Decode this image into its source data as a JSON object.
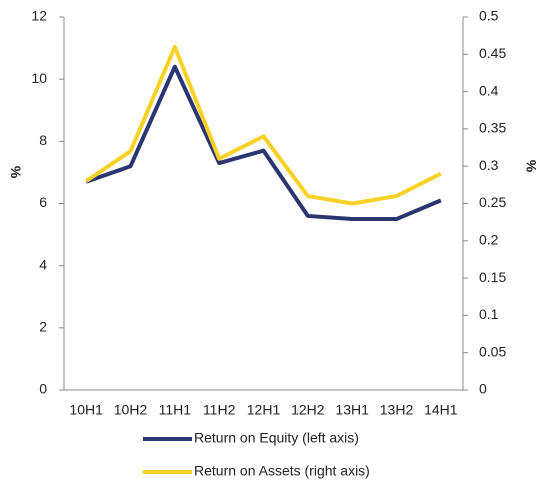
{
  "chart_data": {
    "type": "line",
    "categories": [
      "10H1",
      "10H2",
      "11H1",
      "11H2",
      "12H1",
      "12H2",
      "13H1",
      "13H2",
      "14H1"
    ],
    "y_label": "%",
    "y2_label": "%",
    "ylim": [
      0,
      12
    ],
    "yticks": [
      0,
      2,
      4,
      6,
      8,
      10,
      12
    ],
    "y2lim": [
      0,
      0.5
    ],
    "y2ticks": [
      0,
      0.05,
      0.1,
      0.15,
      0.2,
      0.25,
      0.3,
      0.35,
      0.4,
      0.45,
      0.5
    ],
    "series": [
      {
        "name": "Return on Equity (left axis)",
        "color": "#2b3572",
        "values": [
          6.7,
          7.2,
          10.4,
          7.3,
          7.7,
          5.6,
          5.5,
          5.5,
          6.1
        ]
      },
      {
        "name": "Return on Assets (right axis)",
        "color": "#f7d126",
        "axis": "y2",
        "values": [
          0.28,
          0.32,
          0.46,
          0.31,
          0.34,
          0.26,
          0.25,
          0.26,
          0.29
        ]
      }
    ]
  }
}
